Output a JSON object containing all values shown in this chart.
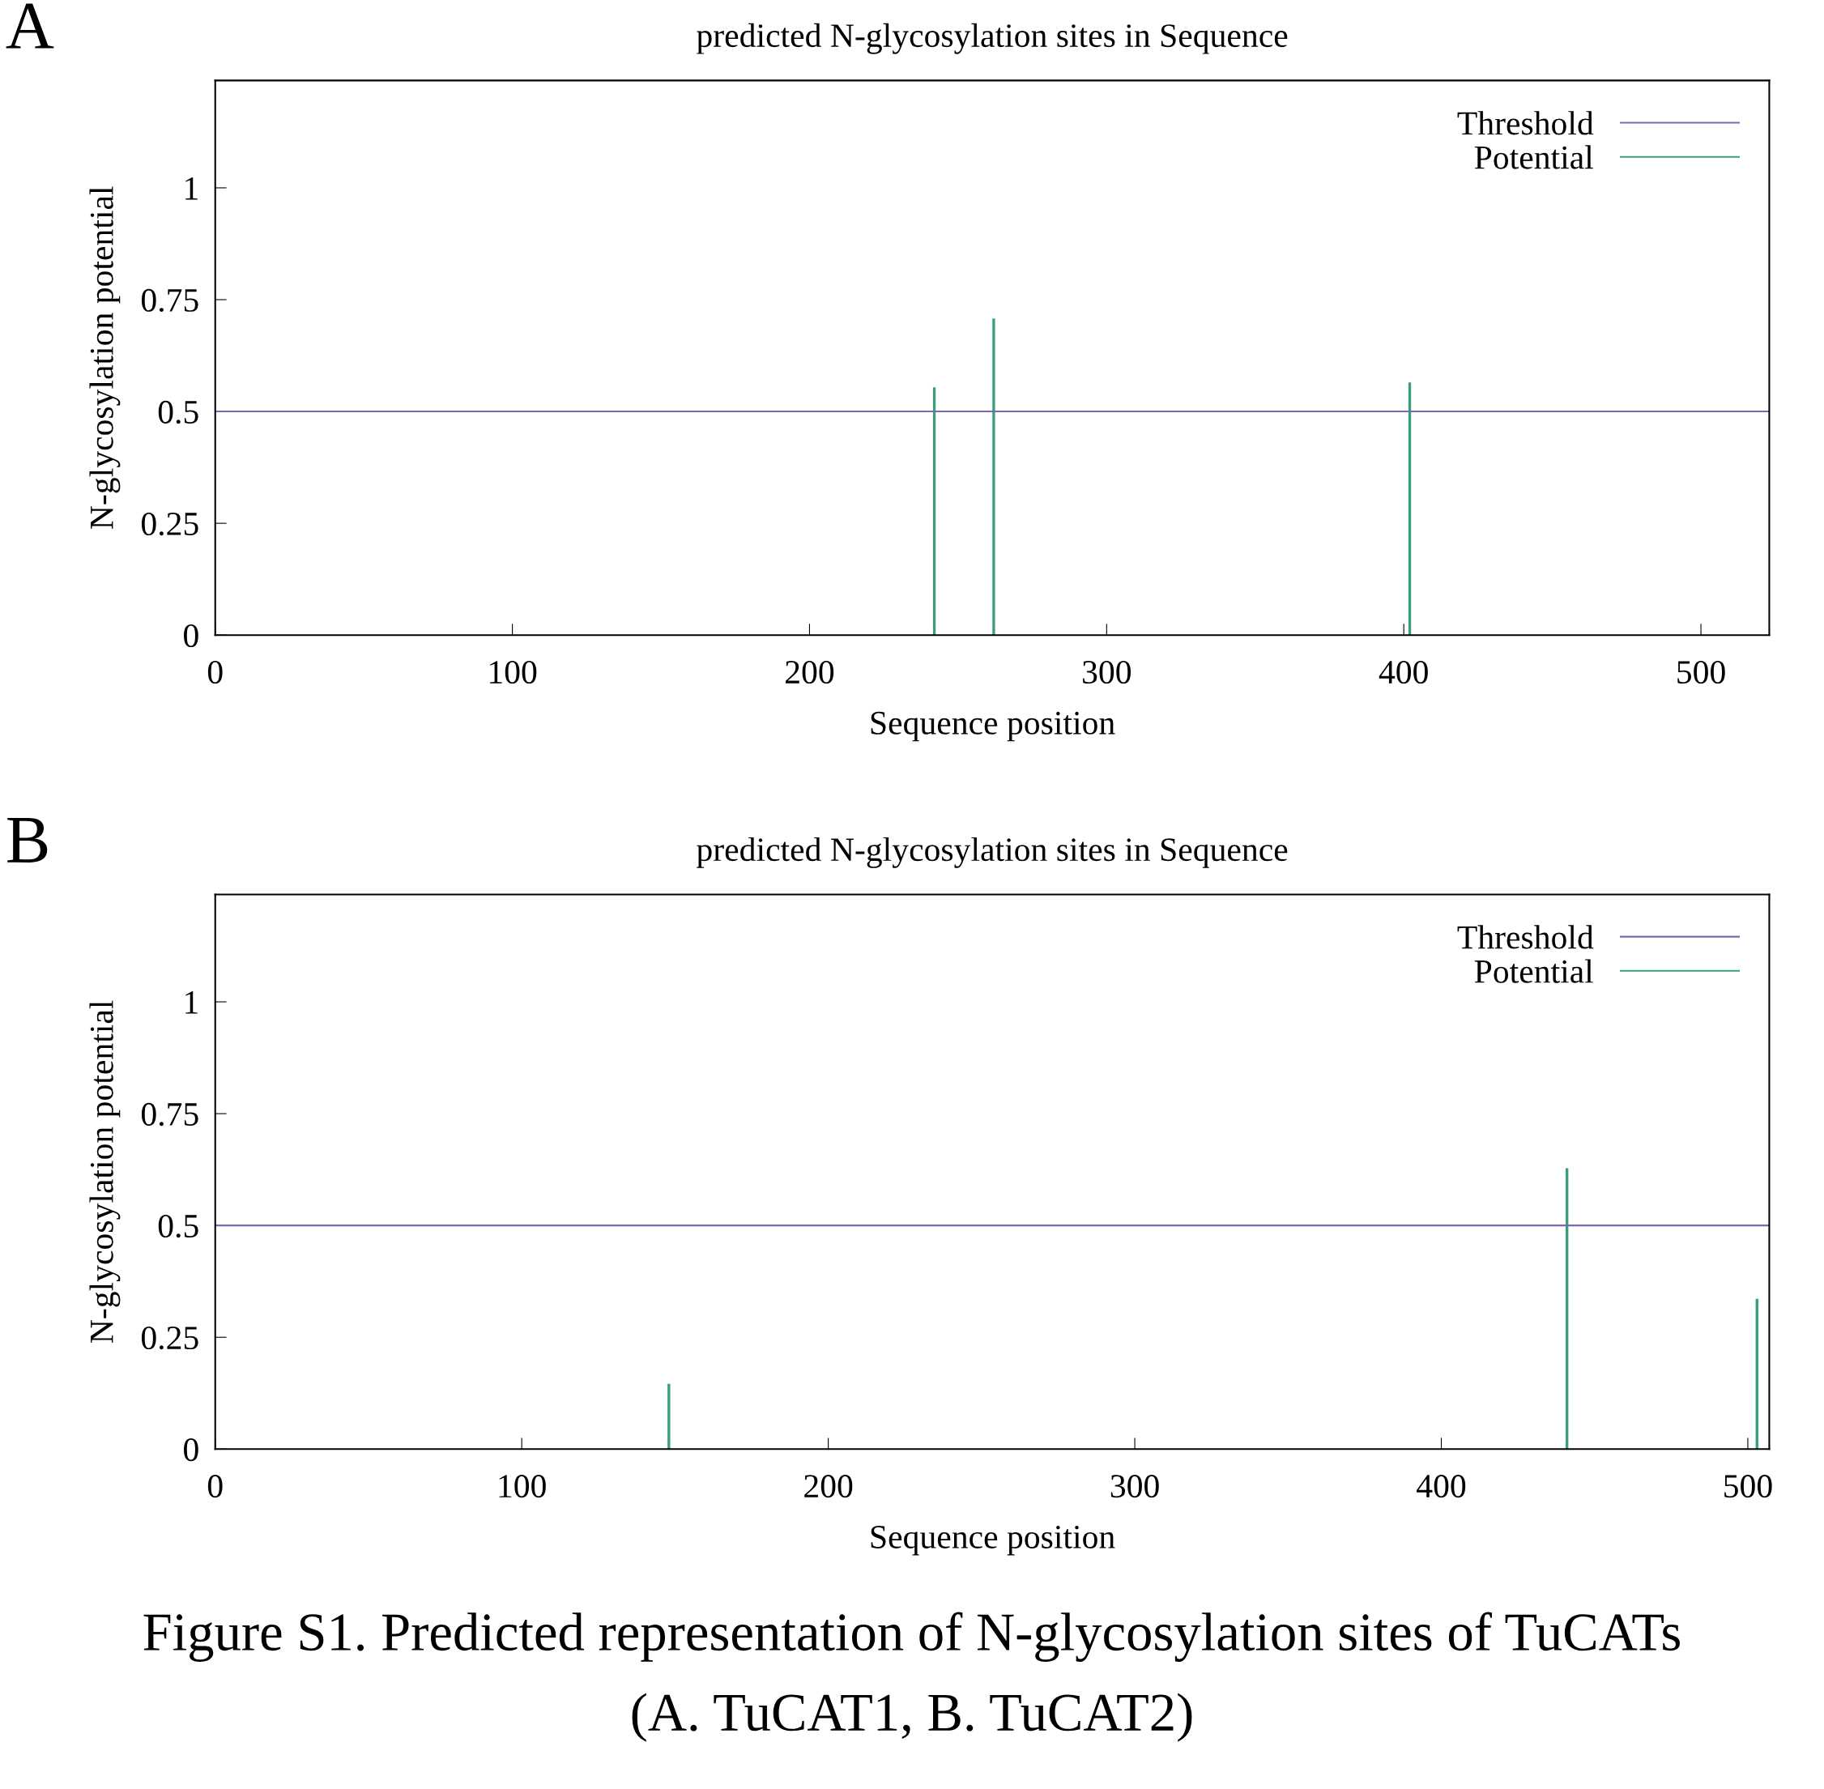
{
  "chart_data": [
    {
      "type": "bar",
      "title": "predicted N-glycosylation sites in Sequence",
      "xlabel": "Sequence position",
      "ylabel": "N-glycosylation potential",
      "x": [
        242,
        262,
        402
      ],
      "series": [
        {
          "name": "Potential",
          "color": "#3a9e7e",
          "values": [
            0.554,
            0.708,
            0.565
          ]
        }
      ],
      "ref_lines": [
        {
          "axis": "y",
          "value": 0.5,
          "label": "Threshold",
          "color": "#7b68b0"
        }
      ],
      "xlim": [
        0,
        523
      ],
      "xticks": [
        0,
        100,
        200,
        300,
        400,
        500
      ],
      "ylim": [
        0,
        1.24
      ],
      "yticks": [
        0,
        0.25,
        0.5,
        0.75,
        1
      ],
      "legend": "top right",
      "grid": false,
      "annotations": [
        "A"
      ]
    },
    {
      "type": "bar",
      "title": "predicted N-glycosylation sites in Sequence",
      "xlabel": "Sequence position",
      "ylabel": "N-glycosylation potential",
      "x": [
        148,
        441,
        503
      ],
      "series": [
        {
          "name": "Potential",
          "color": "#3a9e7e",
          "values": [
            0.146,
            0.628,
            0.336
          ]
        }
      ],
      "ref_lines": [
        {
          "axis": "y",
          "value": 0.5,
          "label": "Threshold",
          "color": "#7b68b0"
        }
      ],
      "xlim": [
        0,
        507
      ],
      "xticks": [
        0,
        100,
        200,
        300,
        400,
        500
      ],
      "ylim": [
        0,
        1.24
      ],
      "yticks": [
        0,
        0.25,
        0.5,
        0.75,
        1
      ],
      "legend": "top right",
      "grid": false,
      "annotations": [
        "B",
        "Figure S1. Predicted representation of N-glycosylation sites of TuCATs",
        "(A. TuCAT1, B. TuCAT2)"
      ]
    }
  ]
}
